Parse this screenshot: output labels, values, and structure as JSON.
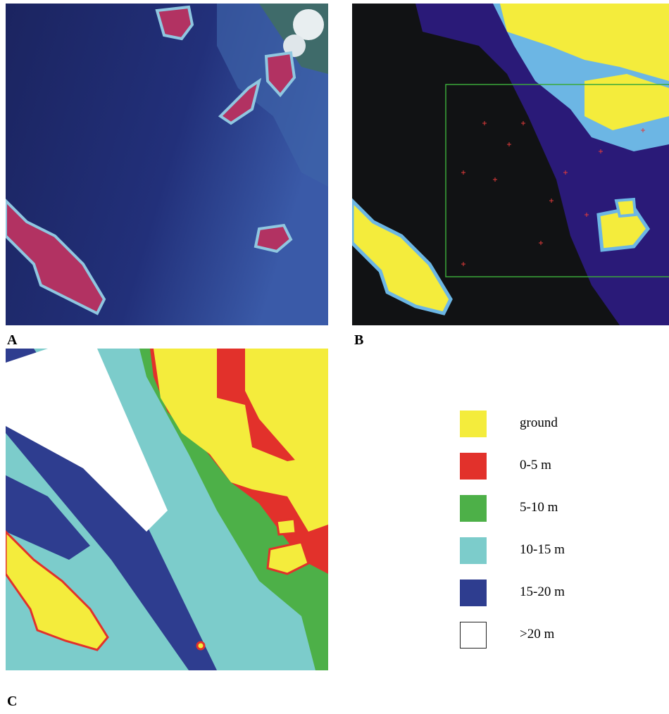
{
  "panels": [
    {
      "label": "A"
    },
    {
      "label": "B"
    },
    {
      "label": "C"
    }
  ],
  "legend": [
    {
      "label": "ground",
      "color": "#f4ec3c"
    },
    {
      "label": "0-5 m",
      "color": "#e2312b"
    },
    {
      "label": "5-10 m",
      "color": "#4db048"
    },
    {
      "label": "10-15 m",
      "color": "#7ccccb"
    },
    {
      "label": "15-20 m",
      "color": "#2e3d8f"
    },
    {
      "label": ">20 m",
      "color": "#ffffff"
    }
  ]
}
